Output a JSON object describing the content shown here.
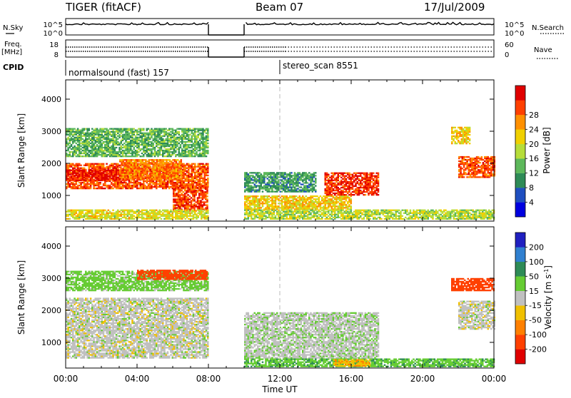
{
  "header": {
    "title": "TIGER (fitACF)",
    "beam": "Beam 07",
    "date": "17/Jul/2009"
  },
  "param_panels": {
    "nsky": {
      "left_label": "N.Sky",
      "left_ticks": [
        "10^5",
        "10^0"
      ],
      "right_ticks": [
        "10^5",
        "10^0"
      ],
      "right_label": "N.Search"
    },
    "freq": {
      "left_label": "Freq.",
      "left_unit": "[MHz]",
      "left_ticks": [
        "18",
        "8"
      ],
      "right_ticks": [
        "60",
        "0"
      ],
      "right_label": "Nave"
    },
    "cpid": {
      "label": "CPID",
      "programs": [
        {
          "name": "normalsound (fast) 157",
          "start_hour": 0
        },
        {
          "name": "stereo_scan 8551",
          "start_hour": 12
        }
      ]
    }
  },
  "x_axis": {
    "label": "Time UT",
    "ticks": [
      "00:00",
      "04:00",
      "08:00",
      "12:00",
      "16:00",
      "20:00",
      "00:00"
    ],
    "range_hours": [
      0,
      24
    ]
  },
  "chart_data": [
    {
      "type": "heatmap",
      "ylabel": "Slant Range [km]",
      "ylim": [
        200,
        4600
      ],
      "yticks": [
        1000,
        2000,
        3000,
        4000
      ],
      "xlim": [
        0,
        24
      ],
      "colorbar": {
        "label": "Power [dB]",
        "ticks": [
          4,
          8,
          12,
          16,
          20,
          24,
          28
        ],
        "range": [
          0,
          32
        ],
        "colors": [
          "#0000e0",
          "#1f4fc0",
          "#2e8b57",
          "#5db85b",
          "#b6dd3a",
          "#f0d000",
          "#ff9000",
          "#ff4000",
          "#e00000"
        ]
      },
      "data_gaps_hours": [
        [
          8.0,
          10.0
        ]
      ],
      "regions": [
        {
          "t": [
            0.0,
            8.0
          ],
          "r": [
            1200,
            2000
          ],
          "v": 26
        },
        {
          "t": [
            0.0,
            3.5
          ],
          "r": [
            1450,
            1800
          ],
          "v": 30
        },
        {
          "t": [
            3.0,
            6.5
          ],
          "r": [
            1500,
            2100
          ],
          "v": 24
        },
        {
          "t": [
            6.0,
            8.0
          ],
          "r": [
            500,
            1300
          ],
          "v": 27
        },
        {
          "t": [
            0.0,
            8.0
          ],
          "r": [
            250,
            550
          ],
          "v": 18
        },
        {
          "t": [
            0.0,
            8.0
          ],
          "r": [
            2200,
            3100
          ],
          "v": 12
        },
        {
          "t": [
            10.0,
            16.0
          ],
          "r": [
            550,
            1000
          ],
          "v": 20
        },
        {
          "t": [
            14.5,
            17.5
          ],
          "r": [
            1000,
            1700
          ],
          "v": 28
        },
        {
          "t": [
            10.0,
            14.0
          ],
          "r": [
            1100,
            1700
          ],
          "v": 10
        },
        {
          "t": [
            10.0,
            24.0
          ],
          "r": [
            250,
            550
          ],
          "v": 16
        },
        {
          "t": [
            22.0,
            24.0
          ],
          "r": [
            1550,
            2200
          ],
          "v": 26
        },
        {
          "t": [
            21.6,
            22.6
          ],
          "r": [
            2600,
            3100
          ],
          "v": 20
        }
      ]
    },
    {
      "type": "heatmap",
      "ylabel": "Slant Range [km]",
      "ylim": [
        200,
        4600
      ],
      "yticks": [
        1000,
        2000,
        3000,
        4000
      ],
      "xlim": [
        0,
        24
      ],
      "colorbar": {
        "label": "Velocity [m s^-1]",
        "ticks": [
          200,
          100,
          50,
          15,
          -15,
          -50,
          -100,
          -200
        ],
        "colors": [
          "#2020c0",
          "#3080d0",
          "#2e8b57",
          "#66cc33",
          "#c0c0c0",
          "#f0c000",
          "#ff8000",
          "#ff4000",
          "#e00000"
        ]
      },
      "data_gaps_hours": [
        [
          8.0,
          10.0
        ]
      ],
      "regions": [
        {
          "t": [
            0.0,
            8.0
          ],
          "r": [
            500,
            2350
          ],
          "v": 0
        },
        {
          "t": [
            0.0,
            8.0
          ],
          "r": [
            2600,
            3200
          ],
          "v": 30
        },
        {
          "t": [
            4.0,
            8.0
          ],
          "r": [
            2950,
            3250
          ],
          "v": -150
        },
        {
          "t": [
            10.0,
            17.5
          ],
          "r": [
            500,
            1900
          ],
          "v": 5
        },
        {
          "t": [
            10.0,
            24.0
          ],
          "r": [
            230,
            500
          ],
          "v": 40
        },
        {
          "t": [
            15.0,
            17.0
          ],
          "r": [
            250,
            450
          ],
          "v": -40
        },
        {
          "t": [
            22.0,
            24.0
          ],
          "r": [
            1400,
            2300
          ],
          "v": 0
        },
        {
          "t": [
            21.6,
            24.0
          ],
          "r": [
            2600,
            3000
          ],
          "v": -150
        }
      ]
    }
  ]
}
